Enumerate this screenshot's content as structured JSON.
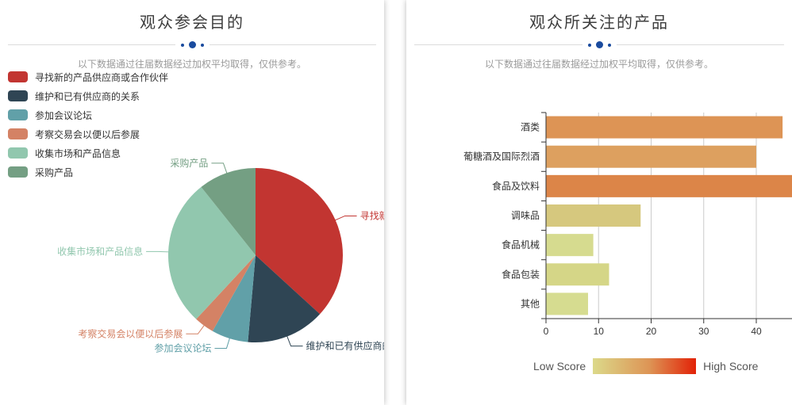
{
  "decor": {
    "divider_dot_color": "#1a4b9e",
    "divider_line_color": "#dcdcdc",
    "axis_color": "#333333",
    "gridline_color": "#cccccc"
  },
  "chart_data": [
    {
      "type": "pie",
      "title": "观众参会目的",
      "subtitle": "以下数据通过往届数据经过加权平均取得，仅供参考。",
      "legend_position": "top-left",
      "label_style": "outside-leader-lines",
      "series": [
        {
          "name": "寻找新的产品供应商或合作伙伴",
          "value": 36.8,
          "color": "#c23531"
        },
        {
          "name": "维护和已有供应商的关系",
          "value": 14.6,
          "color": "#2f4554"
        },
        {
          "name": "参加会议论坛",
          "value": 6.8,
          "color": "#61a0a8"
        },
        {
          "name": "考察交易会以便以后参展",
          "value": 3.7,
          "color": "#d48265"
        },
        {
          "name": "收集市场和产品信息",
          "value": 27.4,
          "color": "#91c7ae"
        },
        {
          "name": "采购产品",
          "value": 10.7,
          "color": "#749f83"
        }
      ]
    },
    {
      "type": "bar",
      "orientation": "horizontal",
      "title": "观众所关注的产品",
      "subtitle": "以下数据通过往届数据经过加权平均取得，仅供参考。",
      "categories": [
        "酒类",
        "葡糖酒及国际烈酒",
        "食品及饮料",
        "调味品",
        "食品机械",
        "食品包装",
        "其他"
      ],
      "values": [
        45,
        40,
        48,
        18,
        9,
        12,
        8
      ],
      "bar_colors": [
        "#dd9455",
        "#dda05f",
        "#dc8548",
        "#d6c87e",
        "#d6db8f",
        "#d5d687",
        "#d6dc90"
      ],
      "xticks": [
        0,
        10,
        20,
        30,
        40
      ],
      "xlim": [
        0,
        48
      ],
      "grid": true,
      "xlabel": "",
      "ylabel": "",
      "visualmap": {
        "low_label": "Low Score",
        "high_label": "High Score",
        "gradient": [
          "#dcd98a",
          "#dd9455",
          "#e22207"
        ]
      }
    }
  ]
}
